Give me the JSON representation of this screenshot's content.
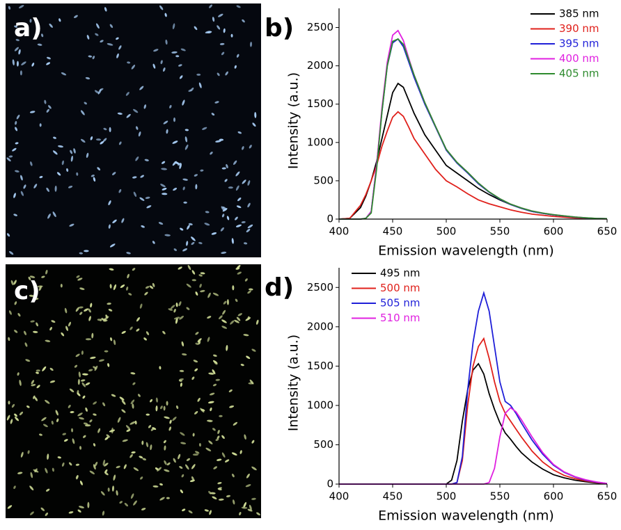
{
  "images": [
    {
      "label": "a)"
    },
    {
      "label": "c)"
    }
  ],
  "chart_data": [
    {
      "type": "line",
      "panel_label": "b)",
      "x_label": "Emission wavelength (nm)",
      "y_label": "Intensity (a.u.)",
      "legend": "top-right",
      "x": [
        400,
        410,
        420,
        425,
        430,
        435,
        440,
        445,
        450,
        455,
        460,
        465,
        470,
        480,
        490,
        500,
        510,
        520,
        530,
        540,
        550,
        560,
        570,
        580,
        590,
        600,
        610,
        620,
        630,
        640,
        650
      ],
      "xlim": [
        400,
        650
      ],
      "xticks": [
        400,
        450,
        500,
        550,
        600,
        650
      ],
      "ylim": [
        0,
        2750
      ],
      "yticks": [
        0,
        500,
        1000,
        1500,
        2000,
        2500
      ],
      "series": [
        {
          "name": "385 nm",
          "color": "#000000",
          "values": [
            0,
            10,
            150,
            300,
            500,
            750,
            1050,
            1350,
            1650,
            1770,
            1720,
            1550,
            1380,
            1100,
            900,
            700,
            600,
            500,
            400,
            320,
            250,
            190,
            140,
            100,
            75,
            55,
            40,
            25,
            15,
            8,
            5
          ]
        },
        {
          "name": "390 nm",
          "color": "#e0201b",
          "values": [
            0,
            10,
            180,
            320,
            500,
            700,
            950,
            1150,
            1330,
            1400,
            1340,
            1200,
            1050,
            850,
            650,
            500,
            420,
            330,
            250,
            200,
            160,
            120,
            90,
            65,
            50,
            35,
            25,
            15,
            10,
            5,
            3
          ]
        },
        {
          "name": "395 nm",
          "color": "#1f1fd8",
          "values": [
            0,
            0,
            0,
            10,
            100,
            700,
            1400,
            2000,
            2300,
            2350,
            2250,
            2050,
            1850,
            1500,
            1200,
            900,
            730,
            600,
            460,
            350,
            260,
            190,
            140,
            100,
            75,
            55,
            40,
            25,
            15,
            8,
            5
          ]
        },
        {
          "name": "400 nm",
          "color": "#e020e0",
          "values": [
            0,
            0,
            0,
            10,
            100,
            700,
            1450,
            2050,
            2400,
            2460,
            2330,
            2100,
            1880,
            1520,
            1210,
            910,
            740,
            610,
            470,
            355,
            265,
            195,
            145,
            105,
            78,
            58,
            42,
            27,
            17,
            9,
            5
          ]
        },
        {
          "name": "405 nm",
          "color": "#2e8b2e",
          "values": [
            0,
            0,
            0,
            10,
            80,
            650,
            1400,
            2000,
            2320,
            2350,
            2280,
            2080,
            1880,
            1520,
            1210,
            910,
            740,
            610,
            470,
            355,
            265,
            195,
            145,
            105,
            78,
            58,
            42,
            27,
            17,
            9,
            5
          ]
        }
      ]
    },
    {
      "type": "line",
      "panel_label": "d)",
      "x_label": "Emission wavelength (nm)",
      "y_label": "Intensity (a.u.)",
      "legend": "top-left",
      "x": [
        400,
        450,
        500,
        505,
        510,
        515,
        520,
        525,
        530,
        535,
        540,
        545,
        550,
        555,
        560,
        565,
        570,
        580,
        590,
        600,
        610,
        620,
        630,
        640,
        650
      ],
      "xlim": [
        400,
        650
      ],
      "xticks": [
        400,
        450,
        500,
        550,
        600,
        650
      ],
      "ylim": [
        0,
        2750
      ],
      "yticks": [
        0,
        500,
        1000,
        1500,
        2000,
        2500
      ],
      "series": [
        {
          "name": "495 nm",
          "color": "#000000",
          "values": [
            0,
            0,
            0,
            50,
            300,
            800,
            1200,
            1450,
            1530,
            1400,
            1150,
            950,
            780,
            650,
            570,
            480,
            400,
            280,
            190,
            120,
            80,
            50,
            30,
            15,
            5
          ]
        },
        {
          "name": "500 nm",
          "color": "#e0201b",
          "values": [
            0,
            0,
            0,
            0,
            20,
            300,
            1000,
            1500,
            1750,
            1850,
            1600,
            1300,
            1050,
            900,
            800,
            700,
            600,
            420,
            280,
            180,
            110,
            70,
            40,
            20,
            5
          ]
        },
        {
          "name": "505 nm",
          "color": "#1f1fd8",
          "values": [
            0,
            0,
            0,
            0,
            20,
            350,
            1200,
            1800,
            2200,
            2430,
            2200,
            1750,
            1300,
            1050,
            1000,
            900,
            780,
            560,
            380,
            240,
            150,
            90,
            50,
            25,
            8
          ]
        },
        {
          "name": "510 nm",
          "color": "#e020e0",
          "values": [
            0,
            0,
            0,
            0,
            0,
            0,
            0,
            0,
            0,
            0,
            20,
            200,
            600,
            900,
            970,
            920,
            820,
            600,
            400,
            250,
            155,
            95,
            55,
            28,
            8
          ]
        }
      ]
    }
  ]
}
